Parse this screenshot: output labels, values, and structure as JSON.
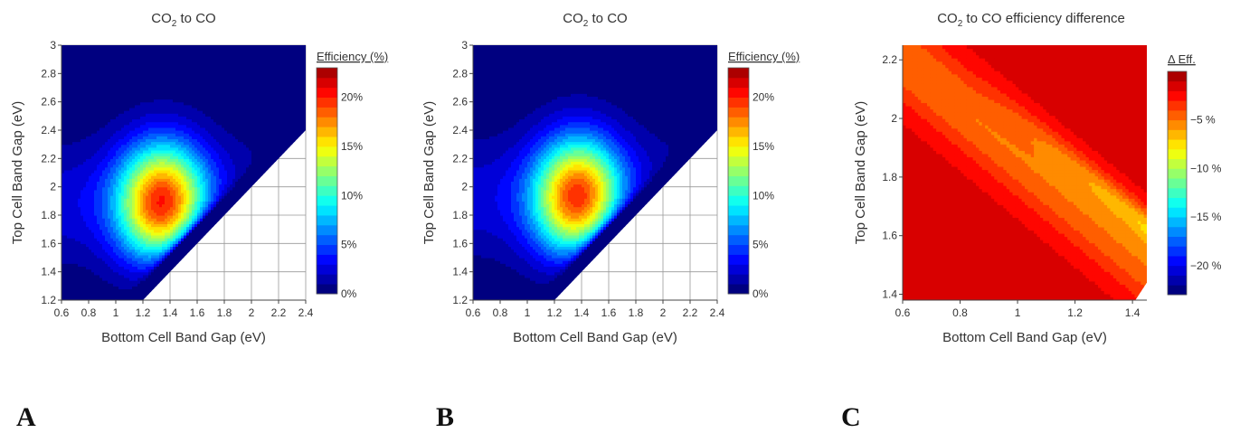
{
  "panel_labels": [
    "A",
    "B",
    "C"
  ],
  "chart_data": [
    {
      "type": "heatmap",
      "title_parts": [
        "CO",
        "2",
        " to CO"
      ],
      "xlabel": "Bottom Cell Band Gap (eV)",
      "ylabel": "Top Cell Band Gap (eV)",
      "xlim": [
        0.6,
        2.4
      ],
      "ylim": [
        1.2,
        3.0
      ],
      "xticks": [
        "0.6",
        "0.8",
        "1",
        "1.2",
        "1.4",
        "1.6",
        "1.8",
        "2",
        "2.2",
        "2.4"
      ],
      "yticks": [
        "1.2",
        "1.4",
        "1.6",
        "1.8",
        "2",
        "2.2",
        "2.4",
        "2.6",
        "2.8",
        "3"
      ],
      "colorbar": {
        "label": "Efficiency (%)",
        "range": [
          0,
          23
        ],
        "ticks": [
          "0%",
          "5%",
          "10%",
          "15%",
          "20%"
        ],
        "tick_values": [
          0,
          5,
          10,
          15,
          20
        ],
        "colormap": "jet"
      },
      "peak": {
        "x": 1.35,
        "y": 1.88,
        "value": 22.5
      },
      "levels": 23
    },
    {
      "type": "heatmap",
      "title_parts": [
        "CO",
        "2",
        " to CO"
      ],
      "xlabel": "Bottom Cell Band Gap (eV)",
      "ylabel": "Top Cell Band Gap (eV)",
      "xlim": [
        0.6,
        2.4
      ],
      "ylim": [
        1.2,
        3.0
      ],
      "xticks": [
        "0.6",
        "0.8",
        "1",
        "1.2",
        "1.4",
        "1.6",
        "1.8",
        "2",
        "2.2",
        "2.4"
      ],
      "yticks": [
        "1.2",
        "1.4",
        "1.6",
        "1.8",
        "2",
        "2.2",
        "2.4",
        "2.6",
        "2.8",
        "3"
      ],
      "colorbar": {
        "label": "Efficiency (%)",
        "range": [
          0,
          23
        ],
        "ticks": [
          "0%",
          "5%",
          "10%",
          "15%",
          "20%"
        ],
        "tick_values": [
          0,
          5,
          10,
          15,
          20
        ],
        "colormap": "jet"
      },
      "peak": {
        "x": 1.38,
        "y": 1.92,
        "value": 22.0
      },
      "levels": 23
    },
    {
      "type": "heatmap",
      "title_parts": [
        "CO",
        "2",
        " to CO efficiency difference"
      ],
      "xlabel": "Bottom Cell Band Gap (eV)",
      "ylabel": "Top Cell Band Gap (eV)",
      "xlim": [
        0.6,
        1.45
      ],
      "ylim": [
        1.38,
        2.25
      ],
      "xticks": [
        "0.6",
        "0.8",
        "1",
        "1.2",
        "1.4"
      ],
      "xtick_values": [
        0.6,
        0.8,
        1.0,
        1.2,
        1.4
      ],
      "yticks": [
        "1.4",
        "1.6",
        "1.8",
        "2",
        "2.2"
      ],
      "ytick_values": [
        1.4,
        1.6,
        1.8,
        2.0,
        2.2
      ],
      "colorbar": {
        "label": "Δ Eff.",
        "range": [
          -23,
          0
        ],
        "ticks": [
          "−5 %",
          "−10 %",
          "−15 %",
          "−20 %"
        ],
        "tick_values": [
          -5,
          -10,
          -15,
          -20
        ],
        "colormap": "jet"
      },
      "levels": 23
    }
  ]
}
